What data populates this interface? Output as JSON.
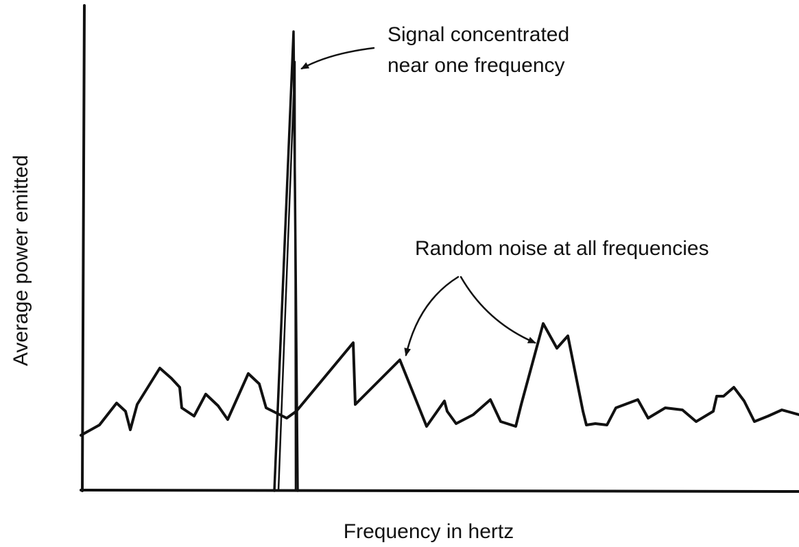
{
  "annotations": {
    "signal": [
      "Signal concentrated",
      "near one frequency"
    ],
    "noise": "Random noise at all frequencies"
  },
  "axis_labels": {
    "y": "Average power emitted",
    "x": "Frequency in hertz"
  }
}
